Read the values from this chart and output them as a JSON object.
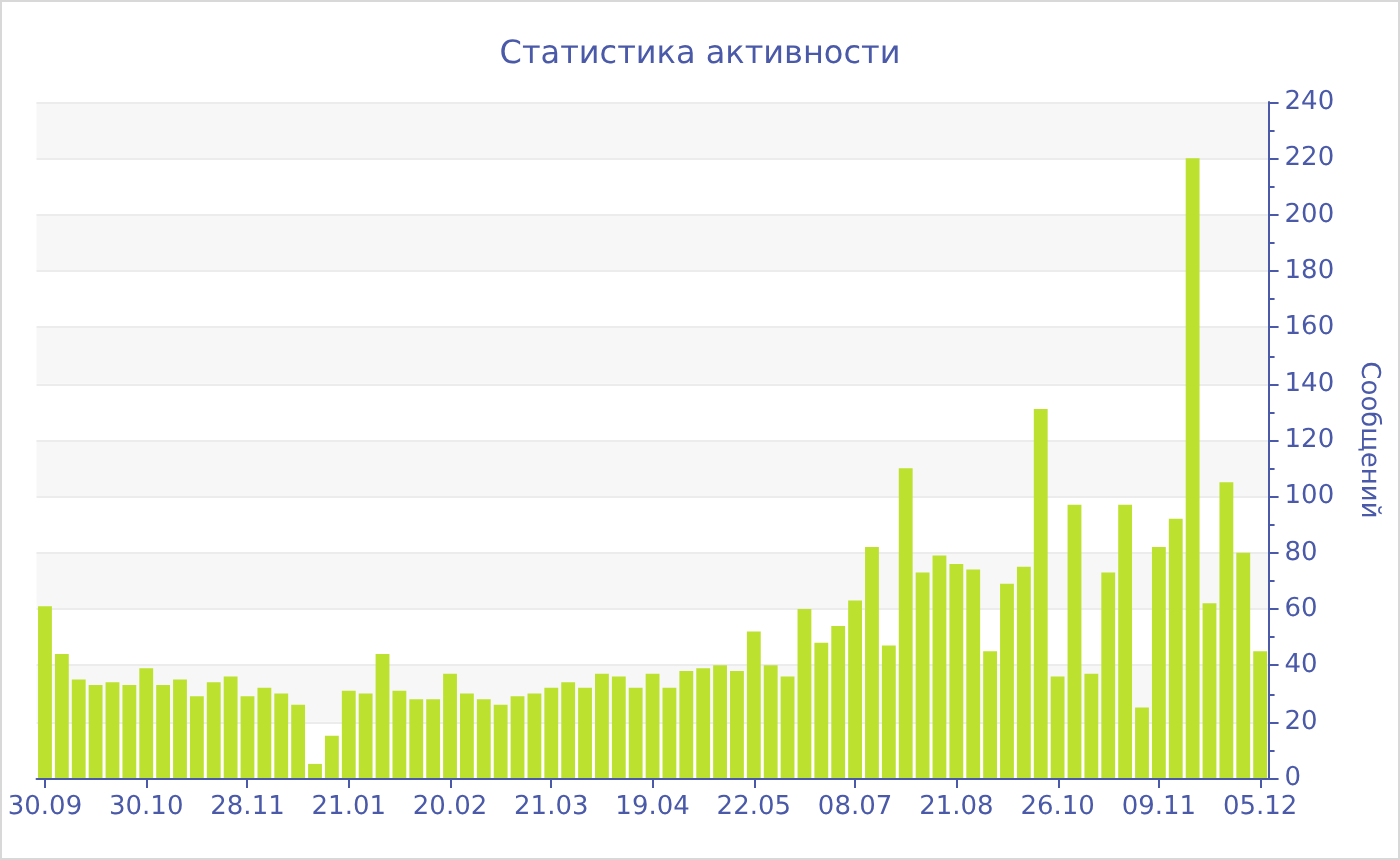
{
  "chart_data": {
    "type": "bar",
    "title": "Статистика активности",
    "ylabel": "Сообщений",
    "categories": [
      "30.09",
      null,
      null,
      null,
      null,
      null,
      "30.10",
      null,
      null,
      null,
      null,
      null,
      "28.11",
      null,
      null,
      null,
      null,
      null,
      "21.01",
      null,
      null,
      null,
      null,
      null,
      "20.02",
      null,
      null,
      null,
      null,
      null,
      "21.03",
      null,
      null,
      null,
      null,
      null,
      "19.04",
      null,
      null,
      null,
      null,
      null,
      "22.05",
      null,
      null,
      null,
      null,
      null,
      "08.07",
      null,
      null,
      null,
      null,
      null,
      "21.08",
      null,
      null,
      null,
      null,
      null,
      "26.10",
      null,
      null,
      null,
      null,
      null,
      "09.11",
      null,
      null,
      null,
      null,
      null,
      "05.12"
    ],
    "values": [
      61,
      44,
      35,
      33,
      34,
      33,
      39,
      33,
      35,
      29,
      34,
      36,
      29,
      32,
      30,
      26,
      5,
      15,
      31,
      30,
      44,
      31,
      28,
      28,
      37,
      30,
      28,
      26,
      29,
      30,
      32,
      34,
      32,
      37,
      36,
      32,
      37,
      32,
      38,
      39,
      40,
      38,
      52,
      40,
      36,
      60,
      48,
      54,
      63,
      82,
      47,
      110,
      73,
      79,
      76,
      74,
      45,
      69,
      75,
      131,
      36,
      97,
      37,
      73,
      97,
      25,
      82,
      92,
      220,
      62,
      105,
      80,
      45
    ],
    "color": "#bde12f",
    "ylim": [
      0,
      240
    ],
    "yticks": [
      0,
      20,
      40,
      60,
      80,
      100,
      120,
      140,
      160,
      180,
      200,
      220,
      240
    ],
    "grid": "y"
  }
}
